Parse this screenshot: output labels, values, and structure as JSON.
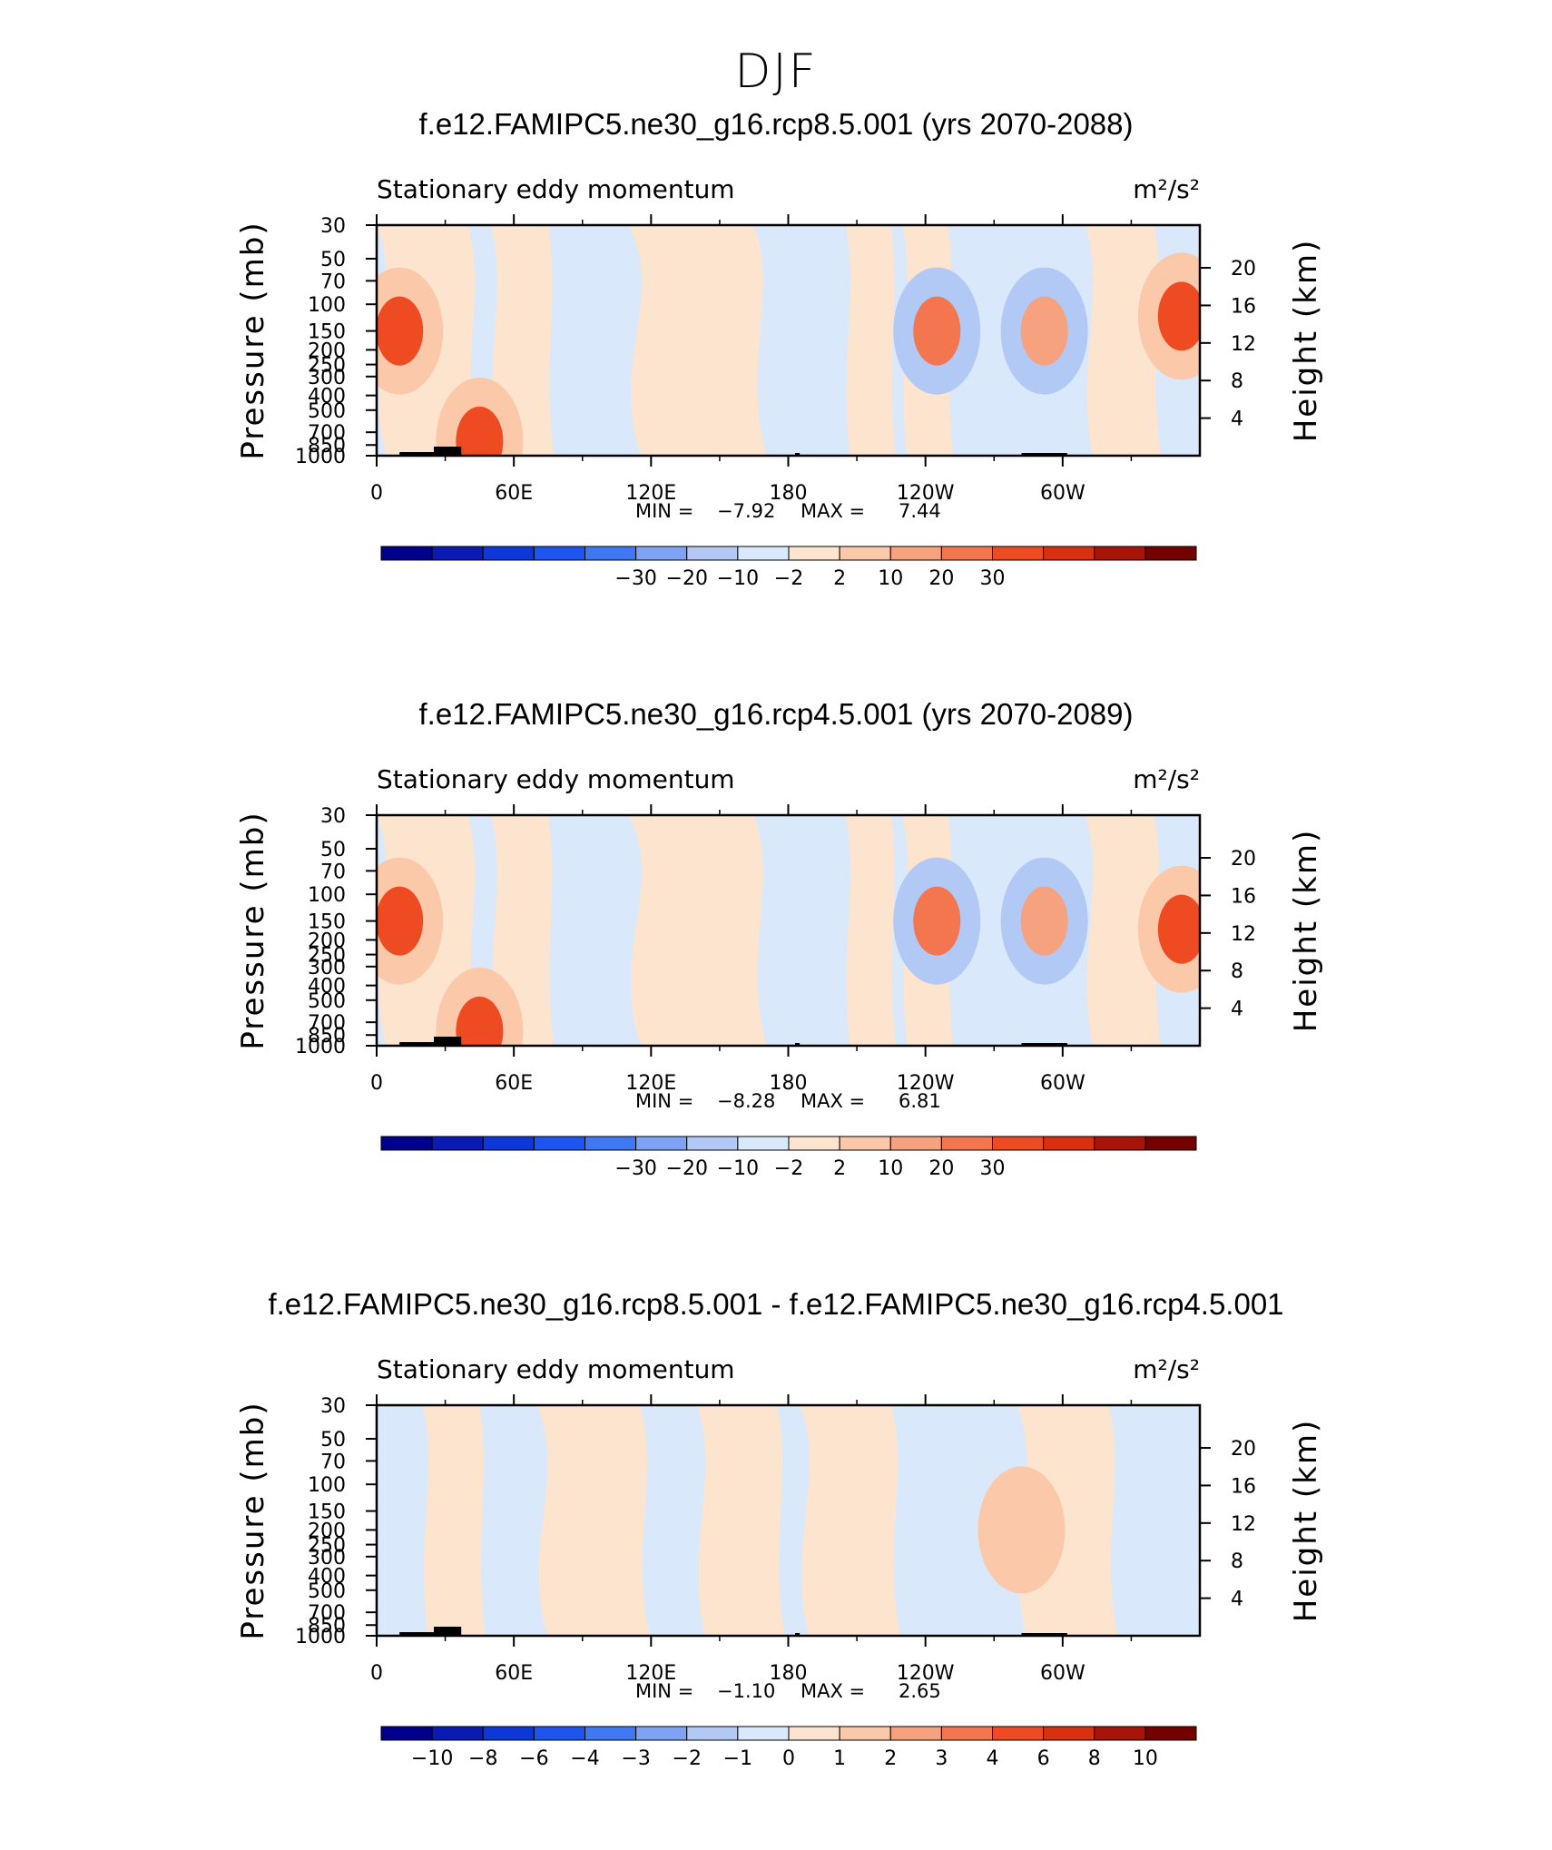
{
  "figure": {
    "title": "DJF"
  },
  "chart_data": [
    {
      "type": "heatmap",
      "title": "f.e12.FAMIPC5.ne30_g16.rcp8.5.001 (yrs 2070-2088)",
      "left_label": "Stationary eddy momentum",
      "units_label": "m²/s²",
      "ylabel": "Pressure (mb)",
      "y2label": "Height (km)",
      "x_ticks": [
        "0",
        "60E",
        "120E",
        "180",
        "120W",
        "60W"
      ],
      "y_ticks": [
        "30",
        "50",
        "70",
        "100",
        "150",
        "200",
        "250",
        "300",
        "400",
        "500",
        "700",
        "850",
        "1000"
      ],
      "y2_ticks": [
        "20",
        "16",
        "12",
        "8",
        "4"
      ],
      "min_label": "MIN =",
      "min_value": "−7.92",
      "max_label": "MAX =",
      "max_value": "7.44",
      "levels": [
        "−30",
        "−20",
        "−10",
        "−2",
        "2",
        "10",
        "20",
        "30"
      ],
      "level_colors": [
        "#00008c",
        "#0a1ab4",
        "#0d37d8",
        "#1e55f0",
        "#3f78f2",
        "#7ea3f4",
        "#b2c8f5",
        "#d9e8fb",
        "#fde4cf",
        "#fbc8aa",
        "#f7a27e",
        "#f3764f",
        "#ee4b22",
        "#d9300f",
        "#a81508",
        "#740000"
      ],
      "features": [
        {
          "lon": 10,
          "p": 150,
          "value": 5
        },
        {
          "lon": 352,
          "p": 120,
          "value": 3
        },
        {
          "lon": 292,
          "p": 150,
          "value": -6
        },
        {
          "lon": 245,
          "p": 150,
          "value": -1
        },
        {
          "lon": 45,
          "p": 800,
          "value": 2
        }
      ]
    },
    {
      "type": "heatmap",
      "title": "f.e12.FAMIPC5.ne30_g16.rcp4.5.001 (yrs 2070-2089)",
      "left_label": "Stationary eddy momentum",
      "units_label": "m²/s²",
      "ylabel": "Pressure (mb)",
      "y2label": "Height (km)",
      "x_ticks": [
        "0",
        "60E",
        "120E",
        "180",
        "120W",
        "60W"
      ],
      "y_ticks": [
        "30",
        "50",
        "70",
        "100",
        "150",
        "200",
        "250",
        "300",
        "400",
        "500",
        "700",
        "850",
        "1000"
      ],
      "y2_ticks": [
        "20",
        "16",
        "12",
        "8",
        "4"
      ],
      "min_label": "MIN =",
      "min_value": "−8.28",
      "max_label": "MAX =",
      "max_value": "6.81",
      "levels": [
        "−30",
        "−20",
        "−10",
        "−2",
        "2",
        "10",
        "20",
        "30"
      ],
      "level_colors": [
        "#00008c",
        "#0a1ab4",
        "#0d37d8",
        "#1e55f0",
        "#3f78f2",
        "#7ea3f4",
        "#b2c8f5",
        "#d9e8fb",
        "#fde4cf",
        "#fbc8aa",
        "#f7a27e",
        "#f3764f",
        "#ee4b22",
        "#d9300f",
        "#a81508",
        "#740000"
      ],
      "features": [
        {
          "lon": 10,
          "p": 150,
          "value": 5
        },
        {
          "lon": 352,
          "p": 170,
          "value": 3
        },
        {
          "lon": 292,
          "p": 150,
          "value": -7
        },
        {
          "lon": 245,
          "p": 150,
          "value": -1
        },
        {
          "lon": 45,
          "p": 800,
          "value": 2
        }
      ]
    },
    {
      "type": "heatmap",
      "title": "f.e12.FAMIPC5.ne30_g16.rcp8.5.001 - f.e12.FAMIPC5.ne30_g16.rcp4.5.001",
      "left_label": "Stationary eddy momentum",
      "units_label": "m²/s²",
      "ylabel": "Pressure (mb)",
      "y2label": "Height (km)",
      "x_ticks": [
        "0",
        "60E",
        "120E",
        "180",
        "120W",
        "60W"
      ],
      "y_ticks": [
        "30",
        "50",
        "70",
        "100",
        "150",
        "200",
        "250",
        "300",
        "400",
        "500",
        "700",
        "850",
        "1000"
      ],
      "y2_ticks": [
        "20",
        "16",
        "12",
        "8",
        "4"
      ],
      "min_label": "MIN =",
      "min_value": "−1.10",
      "max_label": "MAX =",
      "max_value": "2.65",
      "levels": [
        "−10",
        "−8",
        "−6",
        "−4",
        "−3",
        "−2",
        "−1",
        "0",
        "1",
        "2",
        "3",
        "4",
        "6",
        "8",
        "10"
      ],
      "level_colors": [
        "#00008c",
        "#0a1ab4",
        "#0d37d8",
        "#1e55f0",
        "#3f78f2",
        "#7ea3f4",
        "#b2c8f5",
        "#d9e8fb",
        "#fde4cf",
        "#fbc8aa",
        "#f7a27e",
        "#f3764f",
        "#ee4b22",
        "#d9300f",
        "#a81508",
        "#740000"
      ],
      "features": [
        {
          "lon": 282,
          "p": 200,
          "value": 1.5
        }
      ]
    }
  ]
}
